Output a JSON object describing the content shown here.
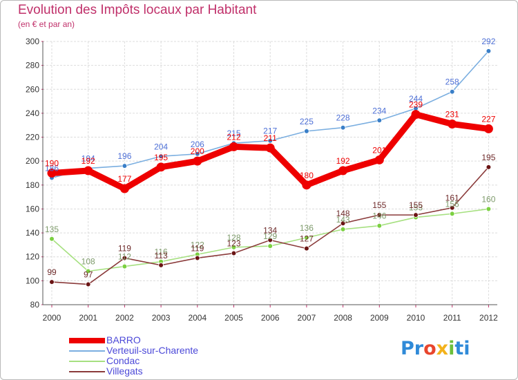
{
  "chart_data": {
    "type": "line",
    "title": "Evolution des Impôts locaux par Habitant",
    "subtitle": "(en € et par an)",
    "xlabel": "",
    "ylabel": "",
    "ylim": [
      80,
      300
    ],
    "yticks": [
      80,
      100,
      120,
      140,
      160,
      180,
      200,
      220,
      240,
      260,
      280,
      300
    ],
    "categories": [
      "2000",
      "2001",
      "2002",
      "2003",
      "2004",
      "2005",
      "2006",
      "2007",
      "2008",
      "2009",
      "2010",
      "2011",
      "2012"
    ],
    "grid": true,
    "legend_position": "bottom-left",
    "series": [
      {
        "name": "BARRO",
        "color": "#ee0000",
        "label_color": "#ee0000",
        "values": [
          190,
          192,
          177,
          195,
          200,
          212,
          211,
          180,
          192,
          201,
          239,
          231,
          227
        ]
      },
      {
        "name": "Verteuil-sur-Charente",
        "color": "#7aaee0",
        "marker_color": "#3a7fc8",
        "label_color": "#4d6fd6",
        "values": [
          186,
          194,
          196,
          204,
          206,
          215,
          217,
          225,
          228,
          234,
          244,
          258,
          292
        ]
      },
      {
        "name": "Condac",
        "color": "#a6e080",
        "marker_color": "#7bd041",
        "label_color": "#7d9a6a",
        "values": [
          135,
          108,
          112,
          116,
          122,
          128,
          129,
          136,
          143,
          146,
          153,
          156,
          160
        ]
      },
      {
        "name": "Villegats",
        "color": "#8a3a3a",
        "marker_color": "#6a1414",
        "label_color": "#6e2a2a",
        "values": [
          99,
          97,
          119,
          113,
          119,
          123,
          134,
          127,
          148,
          155,
          155,
          161,
          195
        ]
      }
    ]
  },
  "logo": {
    "p1": "Pr",
    "p2": "o",
    "p3": "x",
    "p4": "i",
    "p5": "ti"
  }
}
